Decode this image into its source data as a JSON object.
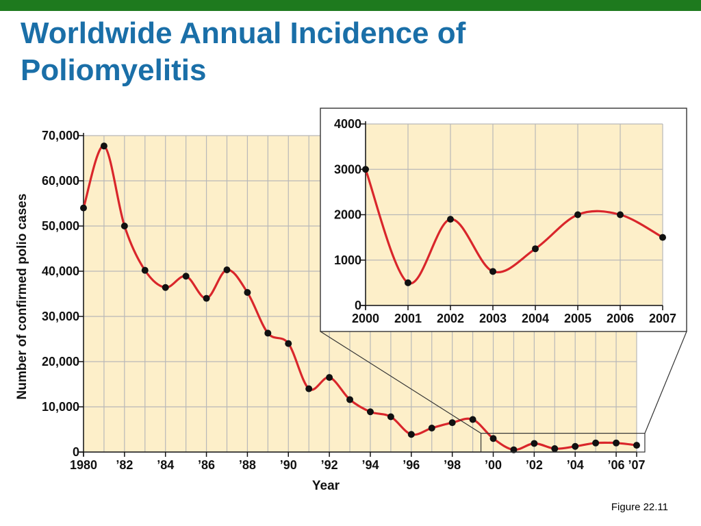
{
  "slide": {
    "title_line1": "Worldwide Annual Incidence of",
    "title_line2": "Poliomyelitis",
    "caption": "Figure 22.11"
  },
  "colors": {
    "top_bar": "#1e7a1e",
    "title": "#1a6fa8",
    "plot_background": "#fdefc9",
    "line": "#d9262b",
    "marker": "#111111",
    "grid": "#b8b8b8"
  },
  "chart_data": [
    {
      "type": "line",
      "title": "",
      "xlabel": "Year",
      "ylabel": "Number of confirmed polio cases",
      "x": [
        1980,
        1981,
        1982,
        1983,
        1984,
        1985,
        1986,
        1987,
        1988,
        1989,
        1990,
        1991,
        1992,
        1993,
        1994,
        1995,
        1996,
        1997,
        1998,
        1999,
        2000,
        2001,
        2002,
        2003,
        2004,
        2005,
        2006,
        2007
      ],
      "series": [
        {
          "values": [
            54000,
            67700,
            50000,
            40200,
            36400,
            38900,
            34000,
            40300,
            35300,
            26300,
            24000,
            14000,
            16500,
            11600,
            8900,
            7800,
            3900,
            5300,
            6500,
            7200,
            3000,
            500,
            1900,
            750,
            1250,
            2000,
            2000,
            1500
          ]
        }
      ],
      "xlim": [
        1980,
        2007
      ],
      "ylim": [
        0,
        70000
      ],
      "x_tick_values": [
        1980,
        1982,
        1984,
        1986,
        1988,
        1990,
        1992,
        1994,
        1996,
        1998,
        2000,
        2002,
        2004,
        2006,
        2007
      ],
      "x_tick_labels": [
        "1980",
        "’82",
        "’84",
        "’86",
        "’88",
        "’90",
        "’92",
        "’94",
        "’96",
        "’98",
        "’00",
        "’02",
        "’04",
        "’06",
        "’07"
      ],
      "y_tick_values": [
        0,
        10000,
        20000,
        30000,
        40000,
        50000,
        60000,
        70000
      ],
      "y_tick_labels": [
        "0",
        "10,000",
        "20,000",
        "30,000",
        "40,000",
        "50,000",
        "60,000",
        "70,000"
      ],
      "grid": true,
      "legend": "none"
    },
    {
      "type": "line",
      "title": "",
      "xlabel": "",
      "ylabel": "",
      "x": [
        2000,
        2001,
        2002,
        2003,
        2004,
        2005,
        2006,
        2007
      ],
      "series": [
        {
          "values": [
            3000,
            500,
            1900,
            750,
            1250,
            2000,
            2000,
            1500
          ]
        }
      ],
      "xlim": [
        2000,
        2007
      ],
      "ylim": [
        0,
        4000
      ],
      "x_tick_values": [
        2000,
        2001,
        2002,
        2003,
        2004,
        2005,
        2006,
        2007
      ],
      "x_tick_labels": [
        "2000",
        "2001",
        "2002",
        "2003",
        "2004",
        "2005",
        "2006",
        "2007"
      ],
      "y_tick_values": [
        0,
        1000,
        2000,
        3000,
        4000
      ],
      "y_tick_labels": [
        "0",
        "1000",
        "2000",
        "3000",
        "4000"
      ],
      "grid": true,
      "legend": "none",
      "inset_of_years": [
        1999.4,
        2007.4
      ]
    }
  ]
}
